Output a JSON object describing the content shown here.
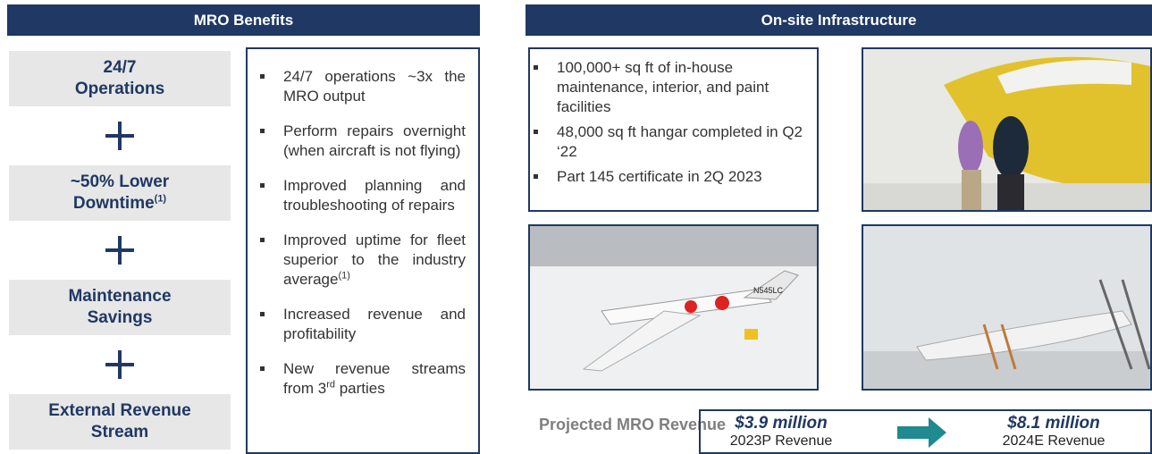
{
  "mro_benefits": {
    "title": "MRO Benefits",
    "items": [
      {
        "lines": [
          "24/7",
          "Operations"
        ]
      },
      {
        "lines": [
          "~50% Lower",
          "Downtime"
        ],
        "sup": "(1)"
      },
      {
        "lines": [
          "Maintenance",
          "Savings"
        ]
      },
      {
        "lines": [
          "External Revenue",
          "Stream"
        ]
      }
    ],
    "bullets": [
      {
        "text": "24/7 operations ~3x the MRO output"
      },
      {
        "text": "Perform repairs overnight (when aircraft is not flying)"
      },
      {
        "text": "Improved planning and troubleshooting of repairs"
      },
      {
        "text": "Improved uptime for fleet superior to the industry average",
        "sup": "(1)"
      },
      {
        "text": "Increased revenue and profitability"
      },
      {
        "text": "New revenue streams from 3",
        "sup": "rd",
        "after": " parties"
      }
    ]
  },
  "infrastructure": {
    "title": "On-site Infrastructure",
    "bullets": [
      {
        "text": "100,000+ sq ft of in-house maintenance, interior, and paint facilities"
      },
      {
        "text": "48,000 sq ft hangar completed in Q2 ‘22"
      },
      {
        "text": "Part 145 certificate in 2Q 2023"
      }
    ],
    "aircraft_registration": "N545LC"
  },
  "revenue": {
    "label": "Projected MRO Revenue",
    "from": {
      "amount": "$3.9 million",
      "caption": "2023P Revenue"
    },
    "to": {
      "amount": "$8.1 million",
      "caption": "2024E Revenue"
    }
  }
}
